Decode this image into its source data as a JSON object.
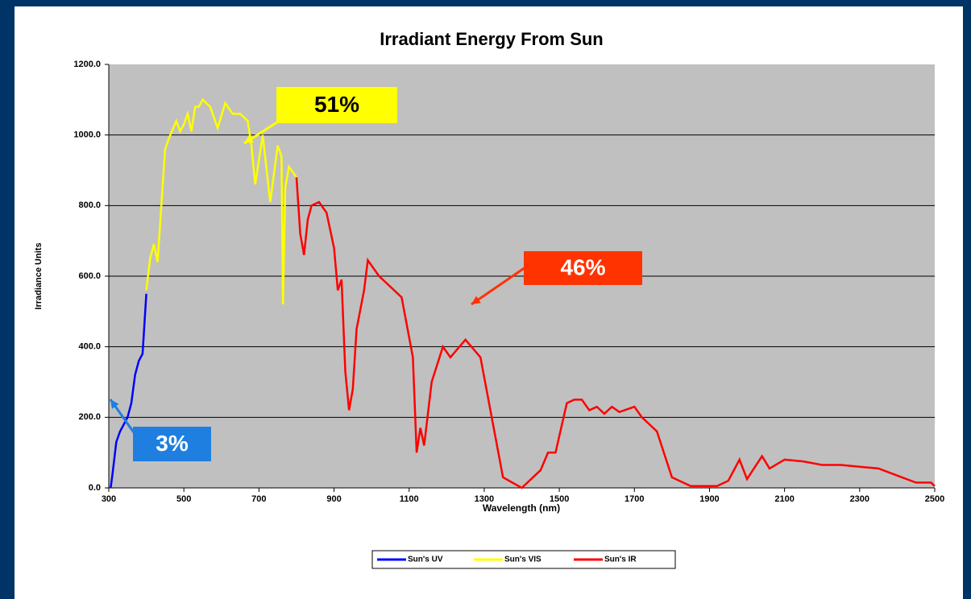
{
  "chart_data": {
    "type": "line",
    "title": "Irradiant Energy From Sun",
    "xlabel": "Wavelength (nm)",
    "ylabel": "Irradiance Units",
    "xlim": [
      300,
      2500
    ],
    "xticks": [
      300,
      500,
      700,
      900,
      1100,
      1300,
      1500,
      1700,
      1900,
      2100,
      2300,
      2500
    ],
    "ylim": [
      0,
      1200
    ],
    "yticks": [
      {
        "value": 0,
        "label": "0.0"
      },
      {
        "value": 200,
        "label": "200.0"
      },
      {
        "value": 400,
        "label": "400.0"
      },
      {
        "value": 600,
        "label": "600.0"
      },
      {
        "value": 800,
        "label": "800.0"
      },
      {
        "value": 1000,
        "label": "1000.0"
      },
      {
        "value": 1200,
        "label": "1200.0"
      }
    ],
    "grid": true,
    "legend": "bottom",
    "series": [
      {
        "name": "Sun's UV",
        "color": "#0000ff",
        "x": [
          305,
          310,
          320,
          330,
          350,
          360,
          370,
          380,
          390,
          400
        ],
        "values": [
          0,
          40,
          130,
          160,
          200,
          240,
          320,
          360,
          380,
          550
        ]
      },
      {
        "name": "Sun's VIS",
        "color": "#ffff00",
        "x": [
          400,
          410,
          420,
          430,
          440,
          450,
          460,
          480,
          490,
          500,
          510,
          520,
          530,
          540,
          550,
          570,
          590,
          610,
          630,
          650,
          670,
          680,
          690,
          710,
          730,
          750,
          760,
          764,
          770,
          780,
          800
        ],
        "values": [
          560,
          650,
          690,
          640,
          800,
          960,
          990,
          1040,
          1010,
          1030,
          1060,
          1010,
          1080,
          1080,
          1100,
          1080,
          1020,
          1090,
          1060,
          1060,
          1040,
          970,
          860,
          1000,
          810,
          970,
          940,
          520,
          850,
          910,
          880
        ]
      },
      {
        "name": "Sun's IR",
        "color": "#ff0000",
        "x": [
          800,
          810,
          820,
          830,
          840,
          860,
          880,
          900,
          910,
          920,
          930,
          940,
          950,
          960,
          980,
          990,
          1000,
          1020,
          1040,
          1080,
          1110,
          1120,
          1130,
          1140,
          1160,
          1190,
          1210,
          1250,
          1290,
          1320,
          1350,
          1400,
          1450,
          1470,
          1490,
          1520,
          1540,
          1560,
          1580,
          1600,
          1620,
          1640,
          1660,
          1700,
          1720,
          1760,
          1800,
          1850,
          1900,
          1920,
          1950,
          1980,
          2000,
          2040,
          2060,
          2100,
          2150,
          2200,
          2250,
          2300,
          2350,
          2400,
          2450,
          2490,
          2500
        ],
        "values": [
          880,
          720,
          660,
          760,
          800,
          810,
          780,
          680,
          560,
          590,
          330,
          220,
          280,
          450,
          560,
          645,
          630,
          600,
          580,
          540,
          370,
          100,
          170,
          120,
          300,
          400,
          370,
          420,
          370,
          200,
          30,
          0,
          50,
          100,
          100,
          240,
          250,
          250,
          220,
          230,
          210,
          230,
          215,
          230,
          200,
          160,
          30,
          5,
          5,
          5,
          20,
          80,
          25,
          90,
          55,
          80,
          75,
          65,
          65,
          60,
          55,
          35,
          15,
          15,
          5
        ]
      }
    ],
    "annotations": [
      {
        "text": "51%",
        "color": "#ffff00",
        "text_color": "#000000"
      },
      {
        "text": "46%",
        "color": "#ff3300",
        "text_color": "#ffffff"
      },
      {
        "text": "3%",
        "color": "#1e7fe0",
        "text_color": "#ffffff"
      }
    ]
  }
}
